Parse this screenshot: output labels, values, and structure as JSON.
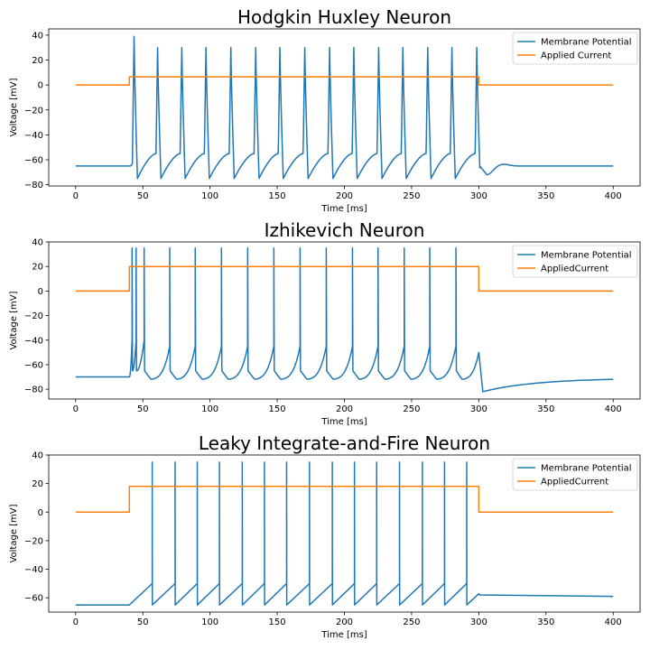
{
  "colors": {
    "membrane": "#1f77b4",
    "current": "#ff7f0e"
  },
  "chart_data": [
    {
      "type": "line",
      "title": "Hodgkin Huxley Neuron",
      "xlabel": "Time [ms]",
      "ylabel": "Voltage [mV]",
      "xlim": [
        -20,
        420
      ],
      "ylim": [
        -81,
        45
      ],
      "xticks": [
        0,
        50,
        100,
        150,
        200,
        250,
        300,
        350,
        400
      ],
      "yticks": [
        -80,
        -60,
        -40,
        -20,
        0,
        20,
        40
      ],
      "legend": {
        "position": "top-right",
        "entries": [
          "Membrane Potential",
          "Applied Current"
        ]
      },
      "series": [
        {
          "name": "Membrane Potential",
          "style": "hh",
          "rest": -65,
          "stim_on": 40,
          "stim_off": 300,
          "spike_times": [
            43.5,
            61,
            79,
            97,
            115.5,
            134,
            152,
            170.5,
            189,
            207,
            225.5,
            243.5,
            262,
            280,
            298.5
          ],
          "spike_peaks": [
            39,
            30,
            30,
            30,
            30,
            30,
            30,
            30,
            30,
            30,
            30,
            30,
            30,
            30,
            30
          ],
          "trough": -75,
          "final_undershoot": -72
        },
        {
          "name": "Applied Current",
          "style": "step",
          "on": 40,
          "off": 300,
          "baseline": 0,
          "level": 6.5
        }
      ]
    },
    {
      "type": "line",
      "title": "Izhikevich Neuron",
      "xlabel": "Time [ms]",
      "ylabel": "Voltage [mV]",
      "xlim": [
        -20,
        420
      ],
      "ylim": [
        -88,
        40
      ],
      "xticks": [
        0,
        50,
        100,
        150,
        200,
        250,
        300,
        350,
        400
      ],
      "yticks": [
        -80,
        -60,
        -40,
        -20,
        0,
        20,
        40
      ],
      "legend": {
        "position": "top-right",
        "entries": [
          "Membrane Potential",
          "AppliedCurrent"
        ]
      },
      "series": [
        {
          "name": "Membrane Potential",
          "style": "izh",
          "rest": -70,
          "stim_on": 40,
          "stim_off": 300,
          "spike_times": [
            42,
            45,
            51,
            70,
            89,
            108.5,
            128,
            147.5,
            167,
            186.5,
            206,
            225,
            244.5,
            263.5,
            283
          ],
          "peak": 35,
          "reset": -65,
          "trough": -72,
          "end_bump": -50,
          "post_min": -82,
          "final": -71
        },
        {
          "name": "AppliedCurrent",
          "style": "step",
          "on": 40,
          "off": 300,
          "baseline": 0,
          "level": 20
        }
      ]
    },
    {
      "type": "line",
      "title": "Leaky Integrate-and-Fire Neuron",
      "xlabel": "Time [ms]",
      "ylabel": "Voltage [mV]",
      "xlim": [
        -20,
        420
      ],
      "ylim": [
        -70,
        40
      ],
      "xticks": [
        0,
        50,
        100,
        150,
        200,
        250,
        300,
        350,
        400
      ],
      "yticks": [
        -60,
        -40,
        -20,
        0,
        20,
        40
      ],
      "legend": {
        "position": "top-right",
        "entries": [
          "Membrane Potential",
          "AppliedCurrent"
        ]
      },
      "series": [
        {
          "name": "Membrane Potential",
          "style": "lif",
          "rest": -65,
          "stim_on": 40,
          "stim_off": 300,
          "spike_times": [
            57,
            74,
            90.5,
            107,
            124,
            140.5,
            157,
            174,
            191,
            207.5,
            224,
            241,
            258,
            274.5,
            291
          ],
          "threshold": -50,
          "peak": 35,
          "reset": -65,
          "post_level": -58,
          "final": -59
        },
        {
          "name": "AppliedCurrent",
          "style": "step",
          "on": 40,
          "off": 300,
          "baseline": 0,
          "level": 18
        }
      ]
    }
  ]
}
